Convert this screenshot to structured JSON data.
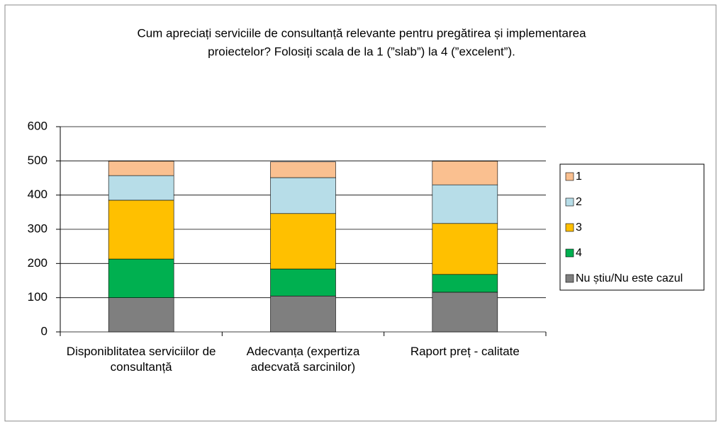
{
  "chart_data": {
    "type": "stacked_bar",
    "title": [
      "Cum apreciați serviciile de consultanță relevante pentru pregătirea și implementarea",
      "proiectelor? Folosiți scala de la 1 (”slab”) la 4 (”excelent”)."
    ],
    "categories": [
      "Disponiblitatea serviciilor de consultanță",
      "Adecvanța (expertiza adecvată sarcinilor)",
      "Raport preț - calitate"
    ],
    "series": [
      {
        "name": "1",
        "color": "#fac090",
        "values": [
          42,
          46,
          69
        ]
      },
      {
        "name": "2",
        "color": "#b7dde8",
        "values": [
          72,
          105,
          113
        ]
      },
      {
        "name": "3",
        "color": "#ffc000",
        "values": [
          172,
          162,
          149
        ]
      },
      {
        "name": "4",
        "color": "#00b050",
        "values": [
          113,
          79,
          52
        ]
      },
      {
        "name": "Nu știu/Nu este cazul",
        "color": "#7f7f7f",
        "values": [
          100,
          105,
          116
        ]
      }
    ],
    "ylim": [
      0,
      600
    ],
    "yticks": [
      0,
      100,
      200,
      300,
      400,
      500,
      600
    ],
    "grid": true,
    "legend": "right"
  }
}
